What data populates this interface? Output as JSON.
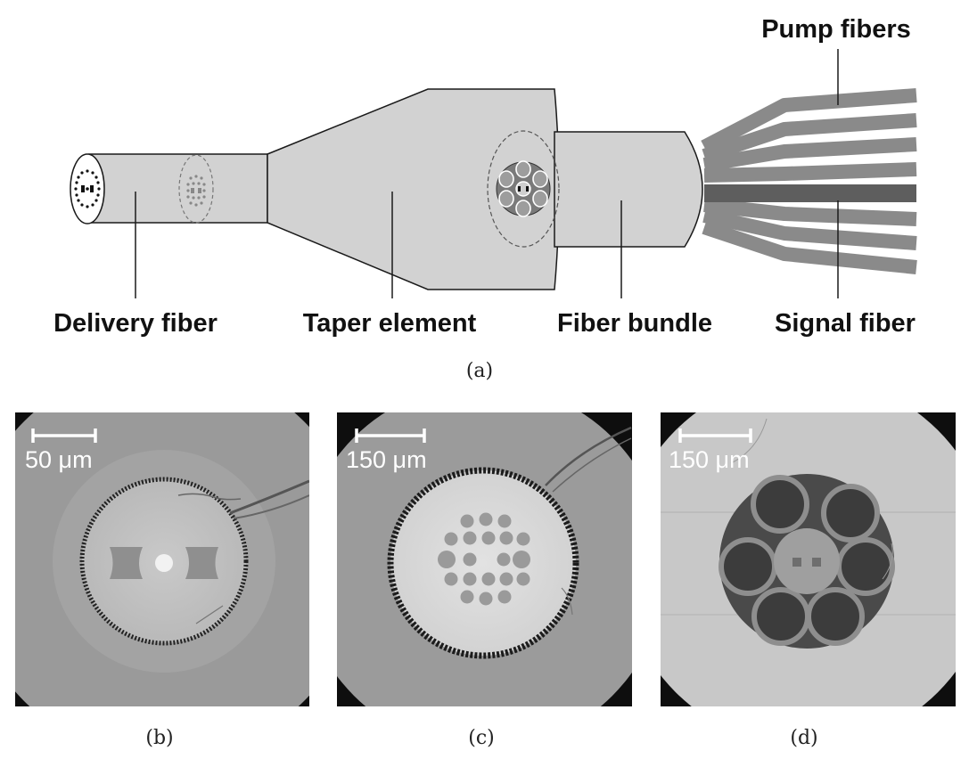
{
  "labels": {
    "delivery": "Delivery fiber",
    "taper": "Taper element",
    "bundle": "Fiber bundle",
    "signal": "Signal fiber",
    "pump": "Pump fibers"
  },
  "captions": {
    "a": "(a)",
    "b": "(b)",
    "c": "(c)",
    "d": "(d)"
  },
  "scale_bars": {
    "b": "50 μm",
    "c": "150 μm",
    "d": "150 μm"
  },
  "colors": {
    "body": "#d2d2d2",
    "outline": "#1a1a1a",
    "pump_fiber": "#8a8a8a",
    "signal_fiber": "#5e5e5e",
    "photo_background": "#0e0e0e"
  }
}
